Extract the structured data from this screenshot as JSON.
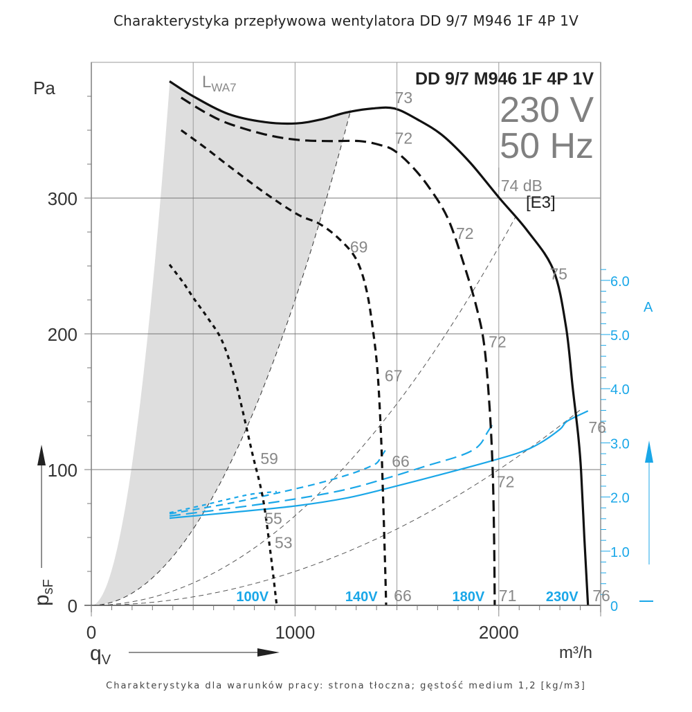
{
  "header": {
    "title": "Charakterystyka przepływowa wentylatora DD 9/7 M946 1F 4P 1V"
  },
  "footer": {
    "note": "Charakterystyka dla warunków pracy: strona tłoczna; gęstość medium 1,2 [kg/m3]"
  },
  "chart_data": {
    "type": "line",
    "title": "Charakterystyka przepływowa wentylatora DD 9/7 M946 1F 4P 1V",
    "model_label": "DD 9/7 M946 1F 4P 1V",
    "voltage_label": "230 V",
    "frequency_label": "50 Hz",
    "energy_class_label": "[E3]",
    "sound_label": "L",
    "sound_label_sub": "WA7",
    "xlabel": "q",
    "xlabel_sub": "V",
    "xunit": "m³/h",
    "ylabel": "p",
    "ylabel_sub": "sF",
    "yunit": "Pa",
    "y2unit": "A",
    "xlim": [
      0,
      2500
    ],
    "ylim": [
      0,
      400
    ],
    "y2lim": [
      0,
      6.4
    ],
    "xticks": [
      0,
      1000,
      2000
    ],
    "xtick_labels": [
      "0",
      "1000",
      "2000"
    ],
    "yticks": [
      0,
      100,
      200,
      300
    ],
    "ytick_labels": [
      "0",
      "100",
      "200",
      "300"
    ],
    "y2ticks": [
      0,
      1.0,
      2.0,
      3.0,
      4.0,
      5.0,
      6.0
    ],
    "y2tick_labels": [
      "0",
      "1.0",
      "2.0",
      "3.0",
      "4.0",
      "5.0",
      "6.0"
    ],
    "grid": true,
    "pressure_series": [
      {
        "name": "230V",
        "style": "solid",
        "points": [
          [
            384,
            386
          ],
          [
            500,
            375
          ],
          [
            672,
            362
          ],
          [
            850,
            356
          ],
          [
            1005,
            355
          ],
          [
            1130,
            358
          ],
          [
            1250,
            363
          ],
          [
            1380,
            366
          ],
          [
            1487,
            366
          ],
          [
            1600,
            358
          ],
          [
            1725,
            346
          ],
          [
            1860,
            326
          ],
          [
            2003,
            300
          ],
          [
            2140,
            276
          ],
          [
            2268,
            247
          ],
          [
            2330,
            205
          ],
          [
            2363,
            160
          ],
          [
            2390,
            125
          ],
          [
            2404,
            99
          ],
          [
            2420,
            50
          ],
          [
            2438,
            0
          ]
        ]
      },
      {
        "name": "180V",
        "style": "dash",
        "points": [
          [
            441,
            374
          ],
          [
            560,
            363
          ],
          [
            672,
            355
          ],
          [
            850,
            347
          ],
          [
            1005,
            343
          ],
          [
            1160,
            342
          ],
          [
            1317,
            342
          ],
          [
            1420,
            339
          ],
          [
            1487,
            335
          ],
          [
            1570,
            324
          ],
          [
            1657,
            308
          ],
          [
            1750,
            285
          ],
          [
            1827,
            252
          ],
          [
            1890,
            220
          ],
          [
            1929,
            191
          ],
          [
            1955,
            145
          ],
          [
            1970,
            99
          ],
          [
            1977,
            50
          ],
          [
            1980,
            0
          ]
        ]
      },
      {
        "name": "140V",
        "style": "dash-medium",
        "points": [
          [
            441,
            350
          ],
          [
            560,
            337
          ],
          [
            672,
            324
          ],
          [
            850,
            304
          ],
          [
            1012,
            288
          ],
          [
            1120,
            281
          ],
          [
            1216,
            270
          ],
          [
            1300,
            255
          ],
          [
            1351,
            232
          ],
          [
            1385,
            200
          ],
          [
            1406,
            170
          ],
          [
            1422,
            125
          ],
          [
            1430,
            89
          ],
          [
            1440,
            40
          ],
          [
            1447,
            0
          ]
        ]
      },
      {
        "name": "100V",
        "style": "dot",
        "points": [
          [
            384,
            251
          ],
          [
            450,
            238
          ],
          [
            503,
            226
          ],
          [
            570,
            212
          ],
          [
            638,
            196
          ],
          [
            695,
            172
          ],
          [
            740,
            145
          ],
          [
            790,
            112
          ],
          [
            842,
            79
          ],
          [
            880,
            38
          ],
          [
            910,
            0
          ]
        ]
      }
    ],
    "current_series": [
      {
        "name": "230V",
        "style": "solid",
        "points": [
          [
            384,
            1.61
          ],
          [
            700,
            1.72
          ],
          [
            1012,
            1.84
          ],
          [
            1250,
            1.98
          ],
          [
            1453,
            2.16
          ],
          [
            1700,
            2.4
          ],
          [
            1929,
            2.63
          ],
          [
            2100,
            2.82
          ],
          [
            2200,
            2.99
          ],
          [
            2300,
            3.25
          ],
          [
            2336,
            3.4
          ],
          [
            2438,
            3.59
          ]
        ]
      },
      {
        "name": "180V",
        "style": "dash",
        "points": [
          [
            384,
            1.65
          ],
          [
            700,
            1.8
          ],
          [
            1012,
            1.97
          ],
          [
            1250,
            2.14
          ],
          [
            1453,
            2.35
          ],
          [
            1650,
            2.58
          ],
          [
            1793,
            2.74
          ],
          [
            1870,
            2.86
          ],
          [
            1912,
            2.99
          ],
          [
            1945,
            3.2
          ],
          [
            1970,
            3.34
          ]
        ]
      },
      {
        "name": "140V",
        "style": "dash-medium",
        "points": [
          [
            384,
            1.69
          ],
          [
            700,
            1.9
          ],
          [
            1012,
            2.16
          ],
          [
            1150,
            2.29
          ],
          [
            1284,
            2.44
          ],
          [
            1360,
            2.55
          ],
          [
            1402,
            2.63
          ],
          [
            1425,
            2.76
          ],
          [
            1443,
            2.86
          ]
        ]
      },
      {
        "name": "100V",
        "style": "dot",
        "points": [
          [
            384,
            1.71
          ],
          [
            550,
            1.85
          ],
          [
            706,
            1.99
          ],
          [
            800,
            2.06
          ],
          [
            910,
            2.1
          ]
        ]
      }
    ],
    "system_curves": [
      {
        "k": 0.000225,
        "qmax": 1275
      },
      {
        "k": 6.6e-05,
        "qmax": 2085
      },
      {
        "k": 2.5e-05,
        "qmax": 2400
      }
    ],
    "lwa_region_left_k": 0.0026,
    "lwa_region_qstart": 384,
    "speed_labels": [
      {
        "text": "100V",
        "q": 870
      },
      {
        "text": "140V",
        "q": 1405
      },
      {
        "text": "180V",
        "q": 1930
      },
      {
        "text": "230V",
        "q": 2390
      }
    ],
    "sound_annotations": [
      {
        "text": "73",
        "q": 1490,
        "p": 370
      },
      {
        "text": "72",
        "q": 1490,
        "p": 340
      },
      {
        "text": "74 dB",
        "q": 2010,
        "p": 305
      },
      {
        "text": "72",
        "q": 1790,
        "p": 270
      },
      {
        "text": "69",
        "q": 1270,
        "p": 260
      },
      {
        "text": "75",
        "q": 2250,
        "p": 240
      },
      {
        "text": "72",
        "q": 1950,
        "p": 190
      },
      {
        "text": "67",
        "q": 1440,
        "p": 165
      },
      {
        "text": "76",
        "q": 2440,
        "p": 127
      },
      {
        "text": "59",
        "q": 830,
        "p": 104
      },
      {
        "text": "66",
        "q": 1475,
        "p": 102
      },
      {
        "text": "72",
        "q": 1990,
        "p": 87
      },
      {
        "text": "55",
        "q": 850,
        "p": 60
      },
      {
        "text": "53",
        "q": 900,
        "p": 42
      },
      {
        "text": "66",
        "q": 1485,
        "p": 3
      },
      {
        "text": "71",
        "q": 2000,
        "p": 3
      },
      {
        "text": "76",
        "q": 2460,
        "p": 3
      }
    ]
  }
}
